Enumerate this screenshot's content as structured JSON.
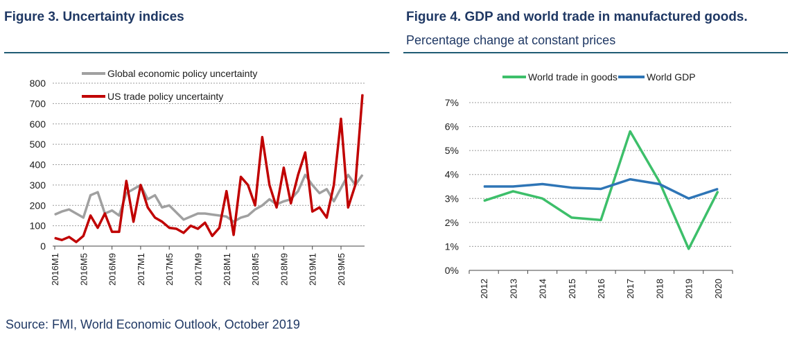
{
  "left_title": "Figure 3. Uncertainty indices",
  "right_title": "Figure 4. GDP and world trade in manufactured goods.",
  "right_subtitle": "Percentage change at constant prices",
  "source": "Source: FMI, World Economic Outlook, October 2019",
  "colors": {
    "title": "#1f3864",
    "rule": "#1f5c73",
    "gray": "#a0a0a0",
    "red": "#c00000",
    "green": "#3dbf6a",
    "blue": "#2e75b6"
  },
  "chart_data": [
    {
      "type": "line",
      "title": "",
      "xlabel": "",
      "ylabel": "",
      "ylim": [
        0,
        800
      ],
      "yticks": [
        "0",
        "100",
        "200",
        "300",
        "400",
        "500",
        "600",
        "700",
        "800"
      ],
      "xtick_labels": [
        "2016M1",
        "2016M5",
        "2016M9",
        "2017M1",
        "2017M5",
        "2017M9",
        "2018M1",
        "2018M5",
        "2018M9",
        "2019M1",
        "2019M5"
      ],
      "xtick_index": [
        0,
        4,
        8,
        12,
        16,
        20,
        24,
        28,
        32,
        36,
        40
      ],
      "grid": "horizontal dashed",
      "legend": "top-left",
      "categories": [
        "2016M1",
        "2016M2",
        "2016M3",
        "2016M4",
        "2016M5",
        "2016M6",
        "2016M7",
        "2016M8",
        "2016M9",
        "2016M10",
        "2016M11",
        "2016M12",
        "2017M1",
        "2017M2",
        "2017M3",
        "2017M4",
        "2017M5",
        "2017M6",
        "2017M7",
        "2017M8",
        "2017M9",
        "2017M10",
        "2017M11",
        "2017M12",
        "2018M1",
        "2018M2",
        "2018M3",
        "2018M4",
        "2018M5",
        "2018M6",
        "2018M7",
        "2018M8",
        "2018M9",
        "2018M10",
        "2018M11",
        "2018M12",
        "2019M1",
        "2019M2",
        "2019M3",
        "2019M4",
        "2019M5",
        "2019M6",
        "2019M7",
        "2019M8"
      ],
      "series": [
        {
          "name": "Global economic policy uncertainty",
          "color": "gray",
          "values": [
            155,
            170,
            180,
            160,
            140,
            250,
            265,
            160,
            175,
            150,
            260,
            280,
            300,
            230,
            250,
            190,
            200,
            165,
            130,
            145,
            160,
            160,
            155,
            150,
            145,
            120,
            140,
            150,
            180,
            200,
            230,
            205,
            220,
            230,
            270,
            350,
            300,
            260,
            280,
            220,
            285,
            350,
            300,
            350
          ]
        },
        {
          "name": "US trade policy uncertainty",
          "color": "red",
          "values": [
            40,
            30,
            45,
            20,
            50,
            150,
            90,
            160,
            70,
            70,
            320,
            120,
            300,
            190,
            140,
            120,
            90,
            85,
            65,
            100,
            85,
            115,
            50,
            90,
            270,
            55,
            340,
            300,
            200,
            535,
            300,
            190,
            385,
            210,
            350,
            460,
            170,
            190,
            140,
            300,
            625,
            190,
            300,
            745
          ]
        }
      ]
    },
    {
      "type": "line",
      "title": "",
      "xlabel": "",
      "ylabel": "",
      "ylim": [
        0,
        7
      ],
      "yticks": [
        "0%",
        "1%",
        "2%",
        "3%",
        "4%",
        "5%",
        "6%",
        "7%"
      ],
      "grid": "horizontal dashed",
      "legend": "top",
      "categories": [
        "2012",
        "2013",
        "2014",
        "2015",
        "2016",
        "2017",
        "2018",
        "2019",
        "2020"
      ],
      "series": [
        {
          "name": "World trade in goods",
          "color": "green",
          "values": [
            2.9,
            3.3,
            3.0,
            2.2,
            2.1,
            5.8,
            3.7,
            0.9,
            3.3
          ]
        },
        {
          "name": "World GDP",
          "color": "blue",
          "values": [
            3.5,
            3.5,
            3.6,
            3.45,
            3.4,
            3.8,
            3.6,
            3.0,
            3.4
          ]
        }
      ]
    }
  ]
}
